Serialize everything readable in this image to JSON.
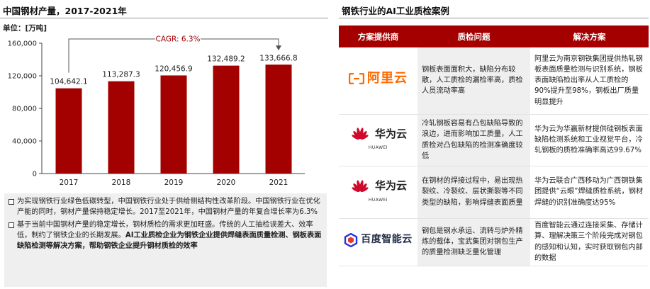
{
  "left_panel": {
    "title": "中国钢材产量，2017-2021年",
    "unit_label": "单位：[万吨]",
    "cagr_label": "CAGR: 6.3%",
    "notes": [
      {
        "text": "为实现钢铁行业绿色低碳转型，中国钢铁行业处于供给侧结构性改革阶段。中国钢铁行业在优化产能的同时，钢材产量保持稳定增长。2017至2021年，中国钢材产量的年复合增长率为6.3%",
        "bold": ""
      },
      {
        "text": "基于当前中国钢材产量的稳定增长，钢材质检的需求更加旺盛。传统的人工抽检误差大、效率低，制约了钢铁企业的长期发展。",
        "bold": "AI工业质检企业为钢铁企业提供焊缝表面质量检测、钢板表面缺陷检测等解决方案，帮助钢铁企业提升钢材质检的效率"
      }
    ]
  },
  "chart_data": {
    "type": "bar",
    "title": "中国钢材产量，2017-2021年",
    "ylabel": "单位：[万吨]",
    "xlabel": "",
    "categories": [
      "2017",
      "2018",
      "2019",
      "2020",
      "2021"
    ],
    "values": [
      104642.1,
      113287.3,
      120456.9,
      132489.2,
      133666.8
    ],
    "value_labels": [
      "104,642.1",
      "113,287.3",
      "120,456.9",
      "132,489.2",
      "133,666.8"
    ],
    "ylim": [
      0,
      160000
    ],
    "yticks": [
      0,
      40000,
      80000,
      120000,
      160000
    ],
    "ytick_labels": [
      "0",
      "40,000",
      "80,000",
      "120,000",
      "160,000"
    ],
    "annotation": "CAGR: 6.3%",
    "bar_color": "#a30000",
    "grid": false,
    "legend": "none"
  },
  "right_panel": {
    "title": "钢铁行业的AI工业质检案例",
    "table": {
      "headers": [
        "方案提供商",
        "质检问题",
        "解决方案"
      ],
      "rows": [
        {
          "provider": "阿里云",
          "logo": "alibaba-cloud-logo",
          "problem": "钢板表面面积大，缺陷分布较散，人工质检的漏检率高，质检人员流动率高",
          "solution": "阿里云为南京钢铁集团提供热轧钢板表面质量检测与识别系统，钢板表面缺陷检出率从人工质检的90%提升至98%，钢板出厂质量明显提升"
        },
        {
          "provider": "华为云",
          "logo": "huawei-cloud-logo",
          "logo_sub": "HUAWEI",
          "problem": "冷轧钢板容易有凸包缺陷导致的浪边，进而影响加工质量，人工质检对凸包缺陷的检测准确度较低",
          "solution": "华为云为华赢新材提供硅钢板表面缺陷检测系统和工业视觉平台，冷轧钢板的质检准确率高达99.67%"
        },
        {
          "provider": "华为云",
          "logo": "huawei-cloud-logo",
          "logo_sub": "HUAWEI",
          "problem": "在钢材的焊接过程中，易出现热裂纹、冷裂纹、层状撕裂等不同类型的缺陷，影响焊缝表面质量",
          "solution": "华为云联合广西移动为广西钢铁集团提供“云眼”焊缝质检系统，钢材焊缝的识别准确度达95%"
        },
        {
          "provider": "百度智能云",
          "logo": "baidu-cloud-logo",
          "problem": "钢包是钢水承运、流转与炉外精炼的载体，宝武集团对钢包生产的质量检测缺乏量化管理",
          "solution": "百度智能云通过连接采集、存储计算、理解决策三个阶段完成对钢包的感知和认知，实时获取钢包内部的数据"
        }
      ]
    }
  },
  "colors": {
    "accent": "#a40000",
    "note_background": "#efefef",
    "alibaba_orange": "#ff6a00",
    "huawei_red": "#cf0a2c",
    "baidu_blue": "#2932e1"
  }
}
